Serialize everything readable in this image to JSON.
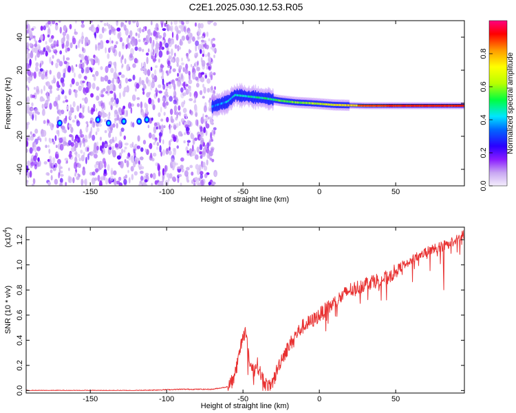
{
  "page_title": "C2E1.2025.030.12.53.R05",
  "chart_data": [
    {
      "type": "heatmap",
      "xlabel": "Height of straight line (km)",
      "ylabel": "Frequency (Hz)",
      "xlim": [
        -192,
        95
      ],
      "ylim": [
        -50,
        50
      ],
      "xticks": [
        -150,
        -100,
        -50,
        0,
        50
      ],
      "xtick_labels": [
        "-150",
        "-100",
        "-50",
        "0",
        "50"
      ],
      "yticks": [
        -40,
        -20,
        0,
        20,
        40
      ],
      "ytick_labels": [
        "-40",
        "-20",
        "0",
        "20",
        "40"
      ],
      "colorbar": {
        "label": "Normalized spectral amplitude",
        "range": [
          0,
          1
        ],
        "ticks": [
          0,
          0.2,
          0.4,
          0.6,
          0.8
        ],
        "tick_labels": [
          "0.0",
          "0.2",
          "0.4",
          "0.6",
          "0.8"
        ]
      },
      "colors": {
        "noise": "#7a00ff",
        "signal_peak": "#e00000"
      },
      "features": [
        {
          "name": "noise",
          "x_range": [
            -192,
            -68
          ],
          "y_range": [
            -50,
            50
          ],
          "amplitude": 0.15
        },
        {
          "name": "low-frequency band",
          "x_range": [
            -172,
            -112
          ],
          "y_center": -11,
          "amplitude": 0.3
        },
        {
          "name": "signal trace",
          "points": [
            [
              -70,
              -2
            ],
            [
              -60,
              1
            ],
            [
              -55,
              5
            ],
            [
              -45,
              4
            ],
            [
              -35,
              3
            ],
            [
              -25,
              1.5
            ],
            [
              -15,
              0.5
            ],
            [
              -5,
              0
            ],
            [
              10,
              -1
            ],
            [
              30,
              -1.5
            ],
            [
              95,
              -1.5
            ]
          ],
          "amplitude_start": 0.35,
          "amplitude_end": 0.9
        }
      ]
    },
    {
      "type": "line",
      "xlabel": "Height of straight line (km)",
      "ylabel": "SNR (10 * v/v)",
      "multiplier": "(x10",
      "multiplier_exp": "4",
      "multiplier_close": ")",
      "xlim": [
        -192,
        95
      ],
      "ylim": [
        -0.02,
        1.3
      ],
      "xticks": [
        -150,
        -100,
        -50,
        0,
        50
      ],
      "xtick_labels": [
        "-150",
        "-100",
        "-50",
        "0",
        "50"
      ],
      "yticks": [
        0.0,
        0.2,
        0.4,
        0.6,
        0.8,
        1.0,
        1.2
      ],
      "ytick_labels": [
        "0.0",
        "0.2",
        "0.4",
        "0.6",
        "0.8",
        "1.0",
        "1.2"
      ],
      "color": "#e83030",
      "series": [
        {
          "x": [
            -192,
            -170,
            -150,
            -120,
            -90,
            -70,
            -60,
            -56,
            -53,
            -51,
            -49,
            -47,
            -45,
            -43,
            -41,
            -38,
            -35,
            -32,
            -30,
            -28,
            -25,
            -20,
            -15,
            -10,
            -5,
            0,
            5,
            10,
            15,
            20,
            25,
            30,
            35,
            40,
            45,
            50,
            55,
            60,
            65,
            70,
            75,
            80,
            85,
            90,
            95
          ],
          "y": [
            0.0,
            0.0,
            0.0,
            0.0,
            0.01,
            0.01,
            0.03,
            0.1,
            0.25,
            0.38,
            0.5,
            0.35,
            0.2,
            0.15,
            0.22,
            0.12,
            0.05,
            0.02,
            0.08,
            0.15,
            0.25,
            0.35,
            0.45,
            0.52,
            0.55,
            0.6,
            0.65,
            0.7,
            0.75,
            0.8,
            0.82,
            0.85,
            0.87,
            0.88,
            0.9,
            0.95,
            1.0,
            1.03,
            1.07,
            1.1,
            1.13,
            1.15,
            1.17,
            1.2,
            1.25
          ]
        }
      ]
    }
  ]
}
